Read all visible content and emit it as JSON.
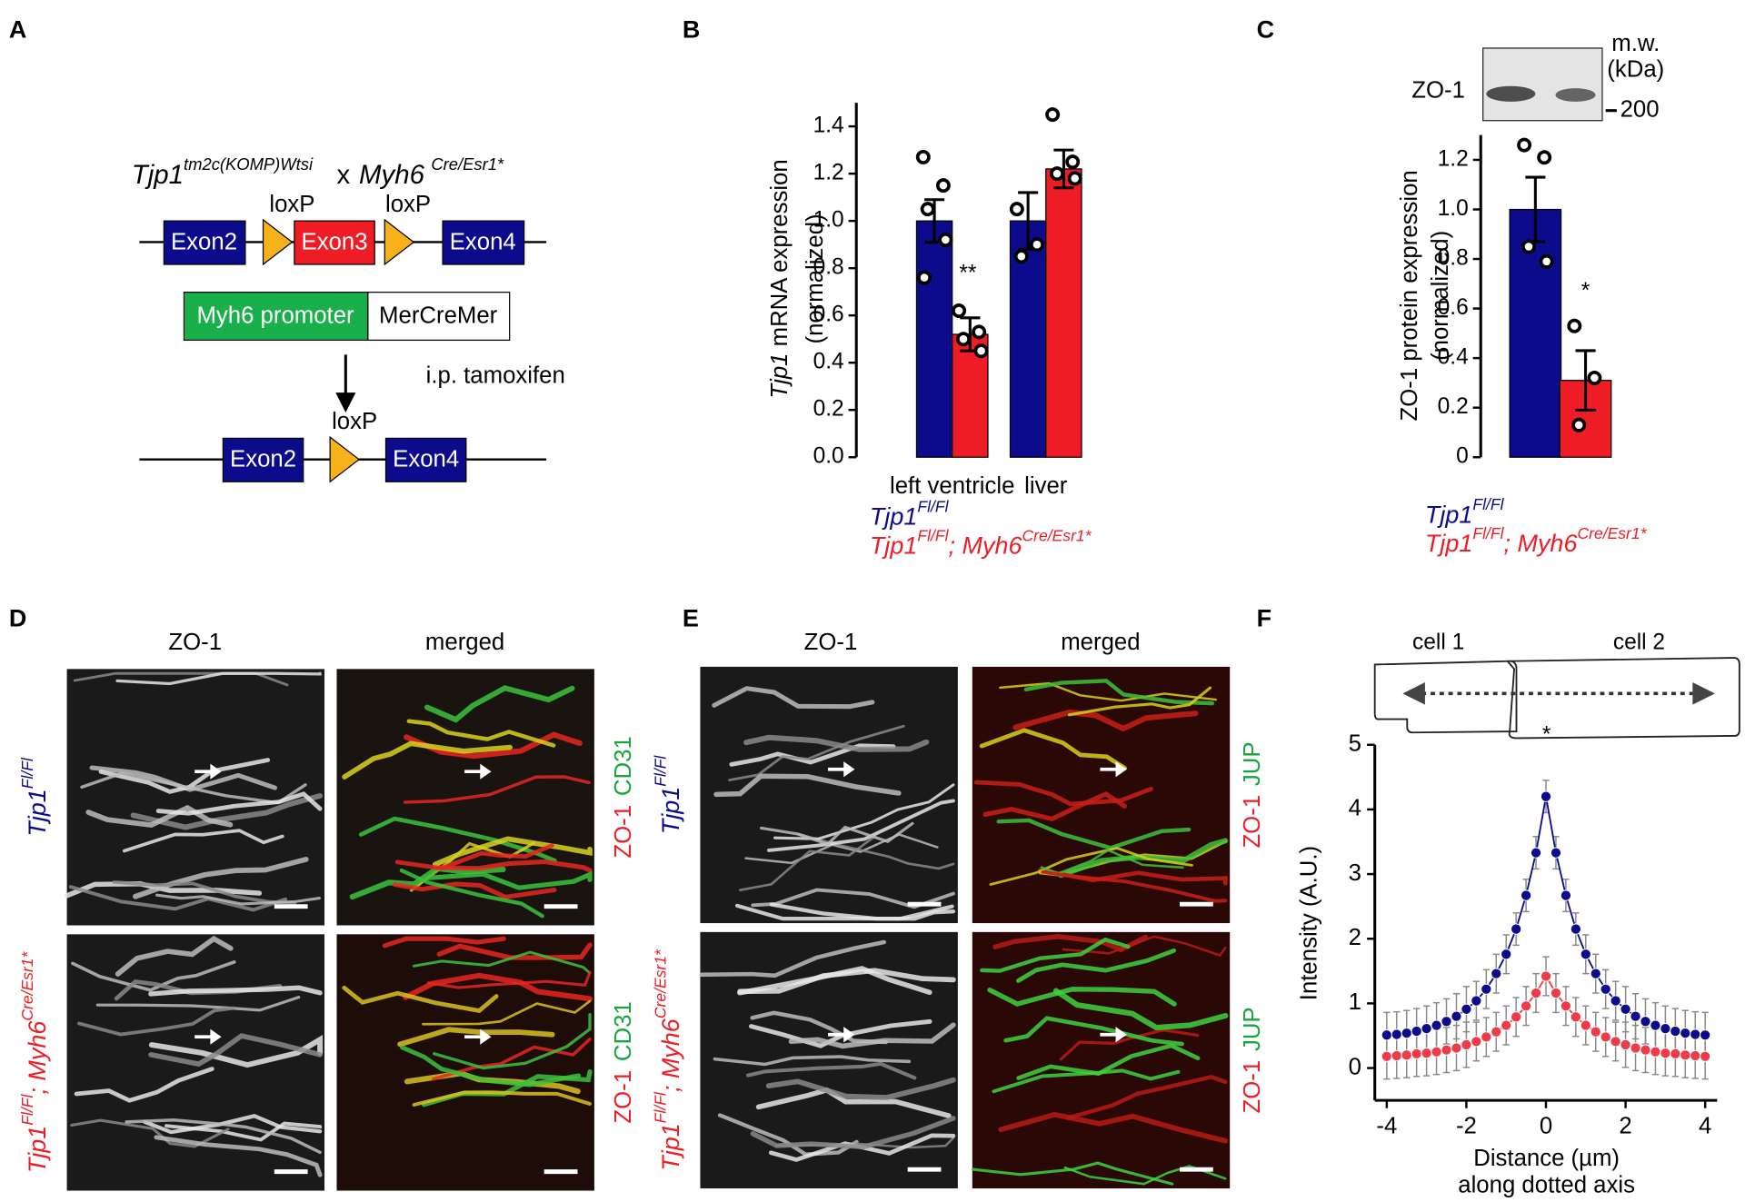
{
  "panel_labels": [
    "A",
    "B",
    "C",
    "D",
    "E",
    "F"
  ],
  "panel_a": {
    "parent1": [
      "Tjp1",
      "tm2c(KOMP)Wtsi"
    ],
    "cross": "x",
    "parent2": [
      "Myh6",
      "Cre/Esr1*"
    ],
    "loxp": [
      "loxP",
      "loxP",
      "loxP"
    ],
    "floxed_allele": [
      "Exon2",
      "Exon3",
      "Exon4"
    ],
    "cre_construct": [
      "Myh6 promoter",
      "MerCreMer"
    ],
    "treatment": "i.p. tamoxifen",
    "recombined_allele": [
      "Exon2",
      "Exon4"
    ]
  },
  "chart_data": [
    {
      "type": "bar",
      "categories": [
        "left ventricle",
        "liver"
      ],
      "series": [
        {
          "name": [
            "Tjp1",
            "Fl/Fl"
          ],
          "color": "#0b0b8c",
          "values": [
            1.0,
            1.0
          ],
          "errors": [
            0.09,
            0.12
          ],
          "points": [
            [
              1.27,
              1.15,
              1.05,
              0.92,
              0.76
            ],
            [
              1.05,
              0.9,
              0.85
            ]
          ]
        },
        {
          "name": [
            "Tjp1",
            "Fl/Fl",
            "; Myh6",
            "Cre/Esr1*"
          ],
          "color": "#ee1c25",
          "values": [
            0.52,
            1.22
          ],
          "errors": [
            0.07,
            0.08
          ],
          "points": [
            [
              0.62,
              0.53,
              0.5,
              0.45
            ],
            [
              1.45,
              1.25,
              1.2,
              1.18
            ]
          ]
        }
      ],
      "ylabel": [
        "Tjp1",
        " mRNA expression"
      ],
      "ylabel_note": "(normalized)",
      "ylim": [
        0,
        1.5
      ],
      "yticks": [
        {
          "value": 0,
          "label": "0.0"
        },
        0.2,
        0.4,
        0.6,
        0.8,
        {
          "value": 1,
          "label": "1.0"
        },
        1.2,
        1.4
      ],
      "annotations": [
        "**"
      ]
    },
    {
      "type": "bar",
      "categories": [
        null
      ],
      "series": [
        {
          "name": [
            "Tjp1",
            "Fl/Fl"
          ],
          "color": "#0b0b8c",
          "values": [
            1.0
          ],
          "errors": [
            0.13
          ],
          "points": [
            [
              1.26,
              1.21,
              0.85,
              0.79
            ]
          ]
        },
        {
          "name": [
            "Tjp1",
            "Fl/Fl",
            "; Myh6",
            "Cre/Esr1*"
          ],
          "color": "#ee1c25",
          "values": [
            0.31
          ],
          "errors": [
            0.12
          ],
          "points": [
            [
              0.53,
              0.32,
              0.13
            ]
          ]
        }
      ],
      "ylabel": [
        "ZO-1 protein expression"
      ],
      "ylabel_note": "(normalized)",
      "ylim": [
        0,
        1.3
      ],
      "yticks": [
        0,
        0.2,
        0.4,
        0.6,
        0.8,
        {
          "value": 1,
          "label": "1.0"
        },
        1.2
      ],
      "annotations": [
        "*"
      ],
      "blot": {
        "band_label": "ZO-1",
        "mw_header": [
          "m.w.",
          "(kDa)"
        ],
        "mw_marker": 200
      }
    },
    {
      "type": "line",
      "x": [
        -4,
        -3.75,
        -3.5,
        -3.25,
        -3,
        -2.75,
        -2.5,
        -2.25,
        -2,
        -1.75,
        -1.5,
        -1.25,
        -1,
        -0.75,
        -0.5,
        -0.25,
        0,
        0.25,
        0.5,
        0.75,
        1,
        1.25,
        1.5,
        1.75,
        2,
        2.25,
        2.5,
        2.75,
        3,
        3.25,
        3.5,
        3.75,
        4
      ],
      "series": [
        {
          "color": "#0b0b8c",
          "values": [
            0.51,
            0.52,
            0.54,
            0.57,
            0.61,
            0.66,
            0.72,
            0.8,
            0.91,
            1.04,
            1.22,
            1.46,
            1.76,
            2.15,
            2.67,
            3.33,
            4.2,
            3.33,
            2.67,
            2.15,
            1.76,
            1.46,
            1.22,
            1.04,
            0.91,
            0.8,
            0.72,
            0.66,
            0.61,
            0.57,
            0.54,
            0.52,
            0.51
          ],
          "errors": [
            0.35,
            0.35,
            0.35,
            0.35,
            0.35,
            0.35,
            0.35,
            0.35,
            0.35,
            0.3,
            0.3,
            0.3,
            0.3,
            0.25,
            0.25,
            0.25,
            0.25,
            0.25,
            0.25,
            0.25,
            0.3,
            0.3,
            0.3,
            0.3,
            0.35,
            0.35,
            0.35,
            0.35,
            0.35,
            0.35,
            0.35,
            0.35,
            0.35
          ]
        },
        {
          "color": "#ef3b48",
          "values": [
            0.18,
            0.19,
            0.2,
            0.22,
            0.23,
            0.25,
            0.28,
            0.31,
            0.36,
            0.41,
            0.48,
            0.56,
            0.66,
            0.79,
            0.96,
            1.16,
            1.42,
            1.16,
            0.96,
            0.79,
            0.66,
            0.56,
            0.48,
            0.41,
            0.36,
            0.31,
            0.28,
            0.25,
            0.23,
            0.22,
            0.2,
            0.19,
            0.18
          ],
          "errors": [
            0.35,
            0.35,
            0.35,
            0.35,
            0.35,
            0.35,
            0.35,
            0.35,
            0.35,
            0.3,
            0.3,
            0.3,
            0.3,
            0.3,
            0.3,
            0.3,
            0.3,
            0.3,
            0.3,
            0.3,
            0.3,
            0.3,
            0.3,
            0.3,
            0.35,
            0.35,
            0.35,
            0.35,
            0.35,
            0.35,
            0.35,
            0.35,
            0.35
          ]
        }
      ],
      "xlabel": [
        "Distance (µm)",
        "along dotted axis"
      ],
      "ylabel": "Intensity (A.U.)",
      "xlim": [
        -4.3,
        4.3
      ],
      "xticks": [
        -4,
        -2,
        0,
        2,
        4
      ],
      "ylim": [
        -0.5,
        5
      ],
      "yticks": [
        0,
        1,
        2,
        3,
        4,
        5
      ],
      "annotations": [
        "*"
      ],
      "cells": [
        "cell 1",
        "cell 2"
      ]
    }
  ],
  "panel_d": {
    "column_labels": [
      "ZO-1",
      "merged"
    ],
    "row_labels": [
      [
        "Tjp1",
        "Fl/Fl"
      ],
      [
        "Tjp1",
        "Fl/Fl",
        "; Myh6",
        "Cre/Esr1*"
      ]
    ],
    "stain_labels": [
      [
        "ZO-1",
        "CD31"
      ],
      [
        "ZO-1",
        "CD31"
      ]
    ]
  },
  "panel_e": {
    "column_labels": [
      "ZO-1",
      "merged"
    ],
    "row_labels": [
      [
        "Tjp1",
        "Fl/Fl"
      ],
      [
        "Tjp1",
        "Fl/Fl",
        "; Myh6",
        "Cre/Esr1*"
      ]
    ],
    "stain_labels": [
      [
        "ZO-1",
        "JUP"
      ],
      [
        "ZO-1",
        "JUP"
      ]
    ]
  }
}
